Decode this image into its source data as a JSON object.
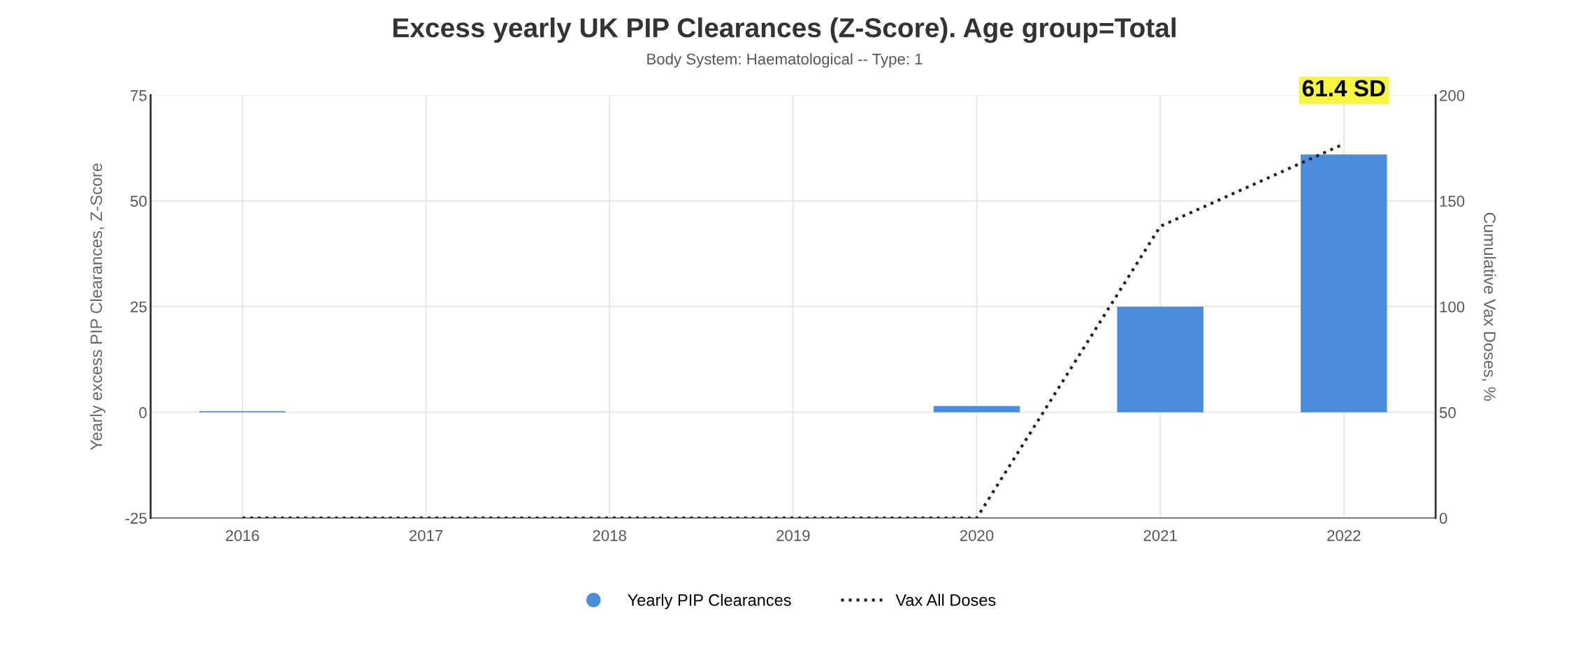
{
  "chart_data": {
    "type": "bar",
    "title": "Excess yearly UK PIP Clearances (Z-Score). Age group=Total",
    "subtitle": "Body System: Haematological -- Type: 1",
    "ylabel": "Yearly excess PIP Clearances, Z-Score",
    "y2label": "Cumulative Vax Doses, %",
    "categories": [
      "2016",
      "2017",
      "2018",
      "2019",
      "2020",
      "2021",
      "2022"
    ],
    "series": [
      {
        "name": "Yearly PIP Clearances",
        "color": "#4a8ddc",
        "values": [
          0.3,
          0,
          0,
          0,
          1.5,
          25,
          61
        ]
      },
      {
        "name": "Vax All Doses",
        "type": "line",
        "axis": "y2",
        "color": "#222222",
        "line_style": "dotted",
        "values": [
          0,
          0,
          0,
          0,
          0,
          138,
          177
        ]
      }
    ],
    "annotations": [
      {
        "text": "61.4 SD",
        "x": "2022",
        "y": 61
      }
    ],
    "ylim": [
      -25,
      75
    ],
    "yticks": [
      -25,
      0,
      25,
      50,
      75
    ],
    "y2lim": [
      0,
      200
    ],
    "y2ticks": [
      0,
      50,
      100,
      150,
      200
    ],
    "grid": true,
    "legend": "bottom"
  }
}
